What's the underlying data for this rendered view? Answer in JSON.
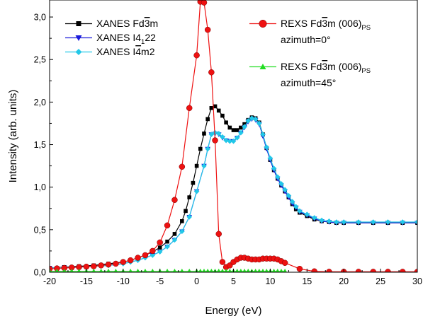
{
  "chart_data": {
    "type": "line",
    "xlabel": "Energy (eV)",
    "ylabel": "Intensity (arb. units)",
    "xlim": [
      -20,
      30
    ],
    "ylim": [
      0,
      3.2
    ],
    "x_ticks": [
      "-20",
      "-15",
      "-10",
      "-5",
      "0",
      "5",
      "10",
      "15",
      "20",
      "25",
      "30"
    ],
    "y_ticks": [
      "0,0",
      "0,5",
      "1,0",
      "1,5",
      "2,0",
      "2,5",
      "3,0"
    ],
    "grid": false,
    "legend_left_placement": "top-left",
    "legend_right_placement": "top-right",
    "series": [
      {
        "name": "XANES Fd3m",
        "color": "#000000",
        "marker": "square",
        "points": [
          [
            -20,
            0.05
          ],
          [
            -18,
            0.06
          ],
          [
            -16,
            0.07
          ],
          [
            -14,
            0.08
          ],
          [
            -12,
            0.1
          ],
          [
            -10,
            0.12
          ],
          [
            -9,
            0.14
          ],
          [
            -8,
            0.17
          ],
          [
            -7,
            0.2
          ],
          [
            -6,
            0.24
          ],
          [
            -5,
            0.29
          ],
          [
            -4,
            0.36
          ],
          [
            -3,
            0.45
          ],
          [
            -2,
            0.6
          ],
          [
            -1.5,
            0.72
          ],
          [
            -1,
            0.88
          ],
          [
            -0.5,
            1.05
          ],
          [
            0,
            1.25
          ],
          [
            0.5,
            1.45
          ],
          [
            1,
            1.63
          ],
          [
            1.5,
            1.8
          ],
          [
            2,
            1.93
          ],
          [
            2.5,
            1.95
          ],
          [
            3,
            1.9
          ],
          [
            3.5,
            1.84
          ],
          [
            4,
            1.76
          ],
          [
            4.5,
            1.7
          ],
          [
            5,
            1.67
          ],
          [
            5.5,
            1.67
          ],
          [
            6,
            1.7
          ],
          [
            6.5,
            1.74
          ],
          [
            7,
            1.79
          ],
          [
            7.5,
            1.82
          ],
          [
            8,
            1.81
          ],
          [
            8.5,
            1.76
          ],
          [
            9,
            1.62
          ],
          [
            9.5,
            1.46
          ],
          [
            10,
            1.32
          ],
          [
            10.5,
            1.2
          ],
          [
            11,
            1.1
          ],
          [
            11.5,
            1.02
          ],
          [
            12,
            0.95
          ],
          [
            12.5,
            0.88
          ],
          [
            13,
            0.8
          ],
          [
            13.5,
            0.74
          ],
          [
            14,
            0.7
          ],
          [
            15,
            0.66
          ],
          [
            16,
            0.62
          ],
          [
            17,
            0.6
          ],
          [
            18,
            0.59
          ],
          [
            19,
            0.58
          ],
          [
            20,
            0.58
          ],
          [
            22,
            0.58
          ],
          [
            24,
            0.58
          ],
          [
            26,
            0.58
          ],
          [
            28,
            0.58
          ],
          [
            30,
            0.58
          ]
        ]
      },
      {
        "name": "XANES I4₁22",
        "color": "#1a1adb",
        "marker": "triangle-down",
        "points": [
          [
            -20,
            0.05
          ],
          [
            -18,
            0.055
          ],
          [
            -16,
            0.06
          ],
          [
            -14,
            0.07
          ],
          [
            -12,
            0.08
          ],
          [
            -10,
            0.1
          ],
          [
            -9,
            0.12
          ],
          [
            -8,
            0.14
          ],
          [
            -7,
            0.17
          ],
          [
            -6,
            0.2
          ],
          [
            -5,
            0.24
          ],
          [
            -4,
            0.3
          ],
          [
            -3,
            0.38
          ],
          [
            -2,
            0.48
          ],
          [
            -1,
            0.65
          ],
          [
            0,
            0.95
          ],
          [
            1,
            1.25
          ],
          [
            1.5,
            1.45
          ],
          [
            2,
            1.62
          ],
          [
            2.5,
            1.63
          ],
          [
            3,
            1.62
          ],
          [
            3.5,
            1.58
          ],
          [
            4,
            1.55
          ],
          [
            4.5,
            1.54
          ],
          [
            5,
            1.54
          ],
          [
            5.5,
            1.58
          ],
          [
            6,
            1.64
          ],
          [
            6.5,
            1.7
          ],
          [
            7,
            1.77
          ],
          [
            7.5,
            1.8
          ],
          [
            8,
            1.79
          ],
          [
            8.5,
            1.74
          ],
          [
            9,
            1.6
          ],
          [
            9.5,
            1.45
          ],
          [
            10,
            1.32
          ],
          [
            10.5,
            1.2
          ],
          [
            11,
            1.1
          ],
          [
            11.5,
            1.02
          ],
          [
            12,
            0.95
          ],
          [
            12.5,
            0.88
          ],
          [
            13,
            0.81
          ],
          [
            13.5,
            0.76
          ],
          [
            14,
            0.71
          ],
          [
            15,
            0.67
          ],
          [
            16,
            0.63
          ],
          [
            17,
            0.6
          ],
          [
            18,
            0.59
          ],
          [
            19,
            0.58
          ],
          [
            20,
            0.58
          ],
          [
            22,
            0.58
          ],
          [
            24,
            0.58
          ],
          [
            26,
            0.58
          ],
          [
            28,
            0.58
          ],
          [
            30,
            0.58
          ]
        ]
      },
      {
        "name": "XANES I4m2",
        "color": "#22c8e8",
        "marker": "diamond",
        "points": [
          [
            -20,
            0.05
          ],
          [
            -18,
            0.055
          ],
          [
            -16,
            0.06
          ],
          [
            -14,
            0.07
          ],
          [
            -12,
            0.08
          ],
          [
            -10,
            0.1
          ],
          [
            -9,
            0.12
          ],
          [
            -8,
            0.14
          ],
          [
            -7,
            0.17
          ],
          [
            -6,
            0.2
          ],
          [
            -5,
            0.24
          ],
          [
            -4,
            0.3
          ],
          [
            -3,
            0.38
          ],
          [
            -2,
            0.48
          ],
          [
            -1,
            0.65
          ],
          [
            0,
            0.95
          ],
          [
            1,
            1.25
          ],
          [
            1.5,
            1.45
          ],
          [
            2,
            1.62
          ],
          [
            2.5,
            1.64
          ],
          [
            3,
            1.63
          ],
          [
            3.5,
            1.59
          ],
          [
            4,
            1.55
          ],
          [
            4.5,
            1.54
          ],
          [
            5,
            1.54
          ],
          [
            5.5,
            1.58
          ],
          [
            6,
            1.64
          ],
          [
            6.5,
            1.71
          ],
          [
            7,
            1.78
          ],
          [
            7.5,
            1.81
          ],
          [
            8,
            1.8
          ],
          [
            8.5,
            1.75
          ],
          [
            9,
            1.62
          ],
          [
            9.5,
            1.47
          ],
          [
            10,
            1.34
          ],
          [
            10.5,
            1.22
          ],
          [
            11,
            1.12
          ],
          [
            11.5,
            1.04
          ],
          [
            12,
            0.97
          ],
          [
            12.5,
            0.9
          ],
          [
            13,
            0.83
          ],
          [
            13.5,
            0.77
          ],
          [
            14,
            0.72
          ],
          [
            15,
            0.68
          ],
          [
            16,
            0.64
          ],
          [
            17,
            0.61
          ],
          [
            18,
            0.6
          ],
          [
            19,
            0.59
          ],
          [
            20,
            0.59
          ],
          [
            22,
            0.59
          ],
          [
            24,
            0.59
          ],
          [
            26,
            0.59
          ],
          [
            28,
            0.59
          ],
          [
            30,
            0.59
          ]
        ]
      },
      {
        "name": "REXS Fd3m (006)PS azimuth=0°",
        "color": "#ee1111",
        "marker": "circle",
        "points": [
          [
            -20,
            0.04
          ],
          [
            -19,
            0.045
          ],
          [
            -18,
            0.05
          ],
          [
            -17,
            0.055
          ],
          [
            -16,
            0.06
          ],
          [
            -15,
            0.065
          ],
          [
            -14,
            0.07
          ],
          [
            -13,
            0.08
          ],
          [
            -12,
            0.09
          ],
          [
            -11,
            0.1
          ],
          [
            -10,
            0.12
          ],
          [
            -9,
            0.14
          ],
          [
            -8,
            0.17
          ],
          [
            -7,
            0.2
          ],
          [
            -6,
            0.25
          ],
          [
            -5,
            0.35
          ],
          [
            -4,
            0.55
          ],
          [
            -3,
            0.85
          ],
          [
            -2,
            1.24
          ],
          [
            -1,
            1.93
          ],
          [
            0,
            2.55
          ],
          [
            0.5,
            3.18
          ],
          [
            1,
            3.17
          ],
          [
            1.5,
            2.85
          ],
          [
            2,
            2.35
          ],
          [
            2.5,
            1.55
          ],
          [
            3,
            0.45
          ],
          [
            3.5,
            0.12
          ],
          [
            4,
            0.06
          ],
          [
            4.5,
            0.08
          ],
          [
            5,
            0.12
          ],
          [
            5.5,
            0.15
          ],
          [
            6,
            0.17
          ],
          [
            6.5,
            0.17
          ],
          [
            7,
            0.16
          ],
          [
            7.5,
            0.15
          ],
          [
            8,
            0.15
          ],
          [
            8.5,
            0.15
          ],
          [
            9,
            0.16
          ],
          [
            9.5,
            0.16
          ],
          [
            10,
            0.16
          ],
          [
            10.5,
            0.16
          ],
          [
            11,
            0.15
          ],
          [
            11.5,
            0.13
          ],
          [
            12,
            0.11
          ],
          [
            14,
            0.04
          ],
          [
            16,
            0.01
          ],
          [
            18,
            0.005
          ],
          [
            20,
            0.005
          ],
          [
            22,
            0.005
          ],
          [
            24,
            0.005
          ],
          [
            26,
            0.005
          ],
          [
            28,
            0.005
          ],
          [
            30,
            0.005
          ]
        ]
      },
      {
        "name": "REXS Fd3m (006)PS azimuth=45°",
        "color": "#22dd22",
        "marker": "triangle-up",
        "points": [
          [
            -20,
            0.01
          ],
          [
            -19,
            0.01
          ],
          [
            -18,
            0.01
          ],
          [
            -17,
            0.01
          ],
          [
            -16,
            0.01
          ],
          [
            -15,
            0.01
          ],
          [
            -14,
            0.01
          ],
          [
            -13,
            0.01
          ],
          [
            -12,
            0.01
          ],
          [
            -11,
            0.01
          ],
          [
            -10,
            0.01
          ],
          [
            -9,
            0.01
          ],
          [
            -8,
            0.01
          ],
          [
            -7,
            0.01
          ],
          [
            -6,
            0.01
          ],
          [
            -5,
            0.01
          ],
          [
            -4,
            0.01
          ],
          [
            -3,
            0.01
          ],
          [
            -2,
            0.01
          ],
          [
            -1,
            0.01
          ],
          [
            0,
            0.01
          ],
          [
            0.5,
            0.01
          ],
          [
            1,
            0.01
          ],
          [
            1.5,
            0.01
          ],
          [
            2,
            0.01
          ],
          [
            2.5,
            0.01
          ],
          [
            3,
            0.01
          ],
          [
            3.5,
            0.01
          ],
          [
            4,
            0.01
          ],
          [
            4.5,
            0.01
          ],
          [
            5,
            0.01
          ],
          [
            5.5,
            0.01
          ],
          [
            6,
            0.01
          ],
          [
            6.5,
            0.01
          ],
          [
            7,
            0.01
          ],
          [
            7.5,
            0.01
          ],
          [
            8,
            0.01
          ],
          [
            8.5,
            0.01
          ],
          [
            9,
            0.01
          ],
          [
            9.5,
            0.01
          ],
          [
            10,
            0.01
          ],
          [
            10.5,
            0.01
          ],
          [
            11,
            0.01
          ],
          [
            11.5,
            0.01
          ],
          [
            12,
            0.01
          ]
        ]
      }
    ],
    "legend": [
      {
        "series_index": 0,
        "base": "XANES Fd",
        "over": "3",
        "post": "m",
        "sub": "",
        "post2": "",
        "line2": ""
      },
      {
        "series_index": 1,
        "base": "XANES I4",
        "over": "",
        "post": "",
        "sub": "1",
        "post2": "22",
        "line2": ""
      },
      {
        "series_index": 2,
        "base": "XANES I",
        "over": "4",
        "post": "m2",
        "sub": "",
        "post2": "",
        "line2": ""
      },
      {
        "series_index": 3,
        "base": "REXS Fd",
        "over": "3",
        "post": "m (006)",
        "sub": "PS",
        "post2": "",
        "line2": "azimuth=0°"
      },
      {
        "series_index": 4,
        "base": "REXS Fd",
        "over": "3",
        "post": "m (006)",
        "sub": "PS",
        "post2": "",
        "line2": "azimuth=45°"
      }
    ]
  }
}
